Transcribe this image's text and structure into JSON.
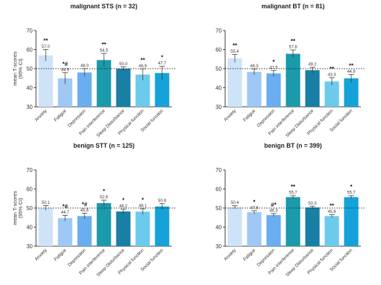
{
  "colors": [
    "#cfe3f8",
    "#9ec8f5",
    "#6aaef0",
    "#1a9aaa",
    "#1a7fa5",
    "#6ccbec",
    "#15a2d9"
  ],
  "chart_data": [
    {
      "type": "bar",
      "title": "malignant STS (n = 32)",
      "ylabel": "mean T-scores (95% CI)",
      "ylim": [
        30,
        70
      ],
      "yticks": [
        "30",
        "40",
        "50",
        "60",
        "70"
      ],
      "reference_line": 50,
      "categories": [
        "Anxiety",
        "Fatigue",
        "Depression",
        "Pain interference",
        "Sleep Disturbance",
        "Physical function",
        "Social function"
      ],
      "values": [
        57.0,
        44.9,
        48.0,
        54.5,
        50.0,
        46.9,
        47.7
      ],
      "labels": [
        "57.0",
        "44.9",
        "48.0",
        "54.5",
        "50.0",
        "46.9",
        "47.7"
      ],
      "errors": [
        3.0,
        3.0,
        2.0,
        3.5,
        1.0,
        3.0,
        3.5
      ],
      "significance": [
        "**",
        "*#",
        "",
        "**",
        "",
        "**",
        "*"
      ]
    },
    {
      "type": "bar",
      "title": "malignant BT (n = 81)",
      "ylabel": "",
      "ylim": [
        30,
        70
      ],
      "yticks": [
        "30",
        "40",
        "50",
        "60",
        "70"
      ],
      "reference_line": 50,
      "categories": [
        "Anxiety",
        "Fatigue",
        "Depression",
        "Pain interference",
        "Sleep Disturbance",
        "Physical function",
        "Social function"
      ],
      "values": [
        55.4,
        48.3,
        47.5,
        57.8,
        49.2,
        43.3,
        44.9
      ],
      "labels": [
        "55.4",
        "48.3",
        "47.5",
        "57.8",
        "49.2",
        "43.3",
        "44.9"
      ],
      "errors": [
        2.0,
        1.5,
        1.5,
        2.0,
        1.5,
        2.0,
        2.0
      ],
      "significance": [
        "**",
        "",
        "*",
        "**",
        "",
        "**",
        "**"
      ]
    },
    {
      "type": "bar",
      "title": "benign STT (n = 125)",
      "ylabel": "mean T-scores (95% CI)",
      "ylim": [
        30,
        70
      ],
      "yticks": [
        "30",
        "40",
        "50",
        "60",
        "70"
      ],
      "reference_line": 50,
      "categories": [
        "Anxiety",
        "Fatigue",
        "Depression",
        "Pain interference",
        "Sleep Disturbance",
        "Physical function",
        "Social function"
      ],
      "values": [
        50.1,
        44.7,
        45.8,
        52.6,
        48.2,
        48.1,
        50.8
      ],
      "labels": [
        "50.1",
        "44.7",
        "45.8",
        "52.6",
        "48.2",
        "48.1",
        "50.8"
      ],
      "errors": [
        1.2,
        1.5,
        1.5,
        1.5,
        1.2,
        1.5,
        1.5
      ],
      "significance": [
        "",
        "*#",
        "*#",
        "*",
        "*",
        "*",
        ""
      ]
    },
    {
      "type": "bar",
      "title": "benign BT (n = 399)",
      "ylabel": "",
      "ylim": [
        30,
        70
      ],
      "yticks": [
        "30",
        "40",
        "50",
        "60",
        "70"
      ],
      "reference_line": 50,
      "categories": [
        "Anxiety",
        "Fatigue",
        "Depression",
        "Pain interference",
        "Sleep Disturbance",
        "Physical function",
        "Social function"
      ],
      "values": [
        50.4,
        47.8,
        46.3,
        55.7,
        50.3,
        45.8,
        55.7
      ],
      "labels": [
        "50.4",
        "47.8",
        "46.3",
        "55.7",
        "50.3",
        "45.8",
        "55.7"
      ],
      "errors": [
        0.8,
        0.8,
        0.8,
        0.8,
        0.7,
        0.8,
        0.8
      ],
      "significance": [
        "",
        "*",
        "#*",
        "**",
        "",
        "**",
        "*"
      ]
    }
  ]
}
